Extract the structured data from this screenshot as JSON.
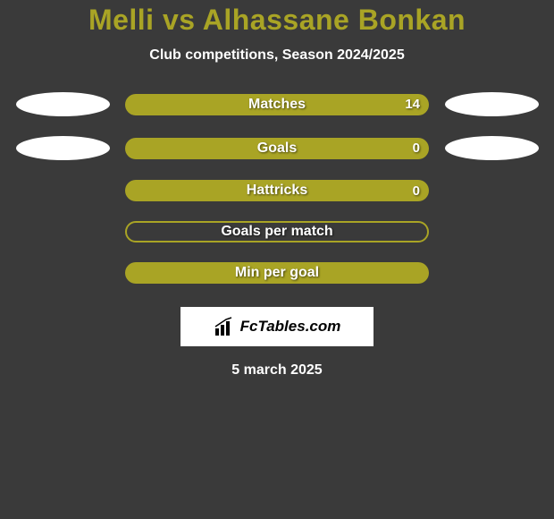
{
  "title": "Melli vs Alhassane Bonkan",
  "subtitle": "Club competitions, Season 2024/2025",
  "colors": {
    "background": "#3a3a3a",
    "accent": "#a9a425",
    "text": "#ffffff",
    "ellipse": "#ffffff",
    "logo_bg": "#ffffff",
    "logo_text": "#000000"
  },
  "rows": [
    {
      "label": "Matches",
      "value": "14",
      "filled": true,
      "leftEllipse": true,
      "rightEllipse": true
    },
    {
      "label": "Goals",
      "value": "0",
      "filled": true,
      "leftEllipse": true,
      "rightEllipse": true
    },
    {
      "label": "Hattricks",
      "value": "0",
      "filled": true,
      "leftEllipse": false,
      "rightEllipse": false
    },
    {
      "label": "Goals per match",
      "value": "",
      "filled": false,
      "leftEllipse": false,
      "rightEllipse": false
    },
    {
      "label": "Min per goal",
      "value": "",
      "filled": true,
      "leftEllipse": false,
      "rightEllipse": false
    }
  ],
  "logo_text": "FcTables.com",
  "date": "5 march 2025"
}
